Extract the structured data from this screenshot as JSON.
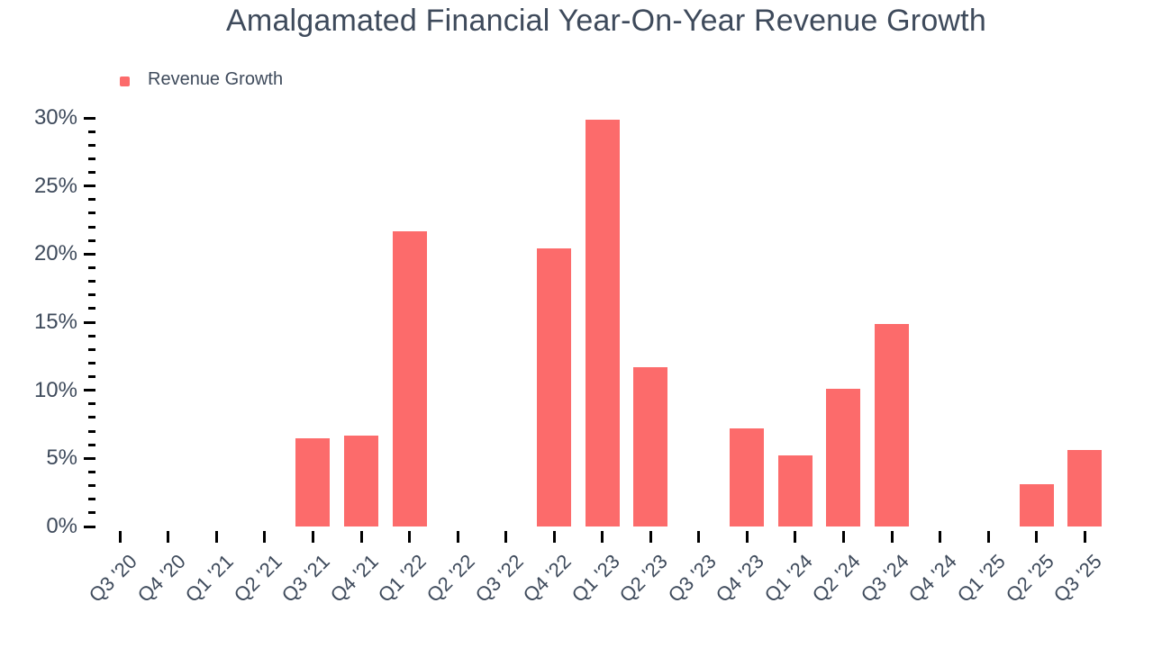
{
  "page": {
    "background": "#FFFFFF"
  },
  "header": {
    "title": "Amalgamated Financial Year-On-Year Revenue Growth"
  },
  "legend": {
    "label": "Revenue Growth",
    "swatch_color": "#FC6B6B"
  },
  "colors": {
    "bar": "#FC6B6B",
    "text": "#3E4A5B",
    "axis_tick": "#000000",
    "background": "#FFFFFF"
  },
  "chart_data": {
    "type": "bar",
    "title": "Amalgamated Financial Year-On-Year Revenue Growth",
    "categories": [
      "Q3 '20",
      "Q4 '20",
      "Q1 '21",
      "Q2 '21",
      "Q3 '21",
      "Q4 '21",
      "Q1 '22",
      "Q2 '22",
      "Q3 '22",
      "Q4 '22",
      "Q1 '23",
      "Q2 '23",
      "Q3 '23",
      "Q4 '23",
      "Q1 '24",
      "Q2 '24",
      "Q3 '24",
      "Q4 '24",
      "Q1 '25",
      "Q2 '25",
      "Q3 '25"
    ],
    "series": [
      {
        "name": "Revenue Growth",
        "color": "#FC6B6B",
        "values": [
          null,
          null,
          null,
          null,
          6.5,
          6.7,
          21.7,
          null,
          null,
          20.4,
          29.9,
          11.7,
          null,
          7.2,
          5.2,
          10.1,
          14.9,
          null,
          null,
          3.1,
          5.6
        ]
      }
    ],
    "xlabel": "",
    "ylabel": "",
    "ylim": [
      0,
      30
    ],
    "ytick_labels": [
      "0%",
      "5%",
      "10%",
      "15%",
      "20%",
      "25%",
      "30%"
    ],
    "ytick_major_step": 5,
    "ytick_minor_step": 1,
    "value_unit": "percent",
    "grid": false,
    "legend_position": "top-left"
  }
}
